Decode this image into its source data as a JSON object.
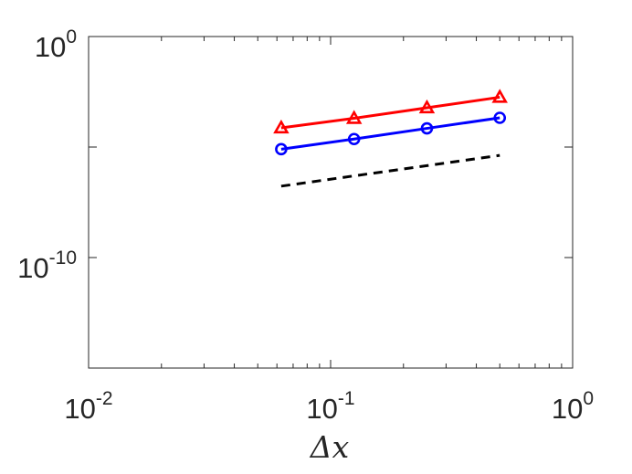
{
  "chart_data": {
    "type": "line",
    "xscale": "log",
    "yscale": "log",
    "xlim": [
      0.01,
      1
    ],
    "ylim": [
      1e-15,
      1
    ],
    "xlabel": "Δx",
    "ylabel": "",
    "grid": false,
    "x_ticks": [
      {
        "value": 0.01,
        "base": "10",
        "exp": "-2"
      },
      {
        "value": 0.1,
        "base": "10",
        "exp": "-1"
      },
      {
        "value": 1,
        "base": "10",
        "exp": "0"
      }
    ],
    "y_ticks": [
      {
        "value": 1,
        "base": "10",
        "exp": "0"
      },
      {
        "value": 1e-10,
        "base": "10",
        "exp": "-10"
      }
    ],
    "series": [
      {
        "color": "#ff0000",
        "marker": "triangle",
        "x": [
          0.0625,
          0.125,
          0.25,
          0.5
        ],
        "y": [
          7.4e-05,
          0.0002,
          0.0006,
          0.0018
        ]
      },
      {
        "color": "#0000ff",
        "marker": "circle",
        "x": [
          0.0625,
          0.125,
          0.25,
          0.5
        ],
        "y": [
          8e-06,
          2.3e-05,
          7e-05,
          0.00021
        ]
      },
      {
        "color": "#000000",
        "marker": "none",
        "dash": true,
        "x": [
          0.0625,
          0.5
        ],
        "y": [
          1.7e-07,
          4.2e-06
        ]
      }
    ]
  }
}
